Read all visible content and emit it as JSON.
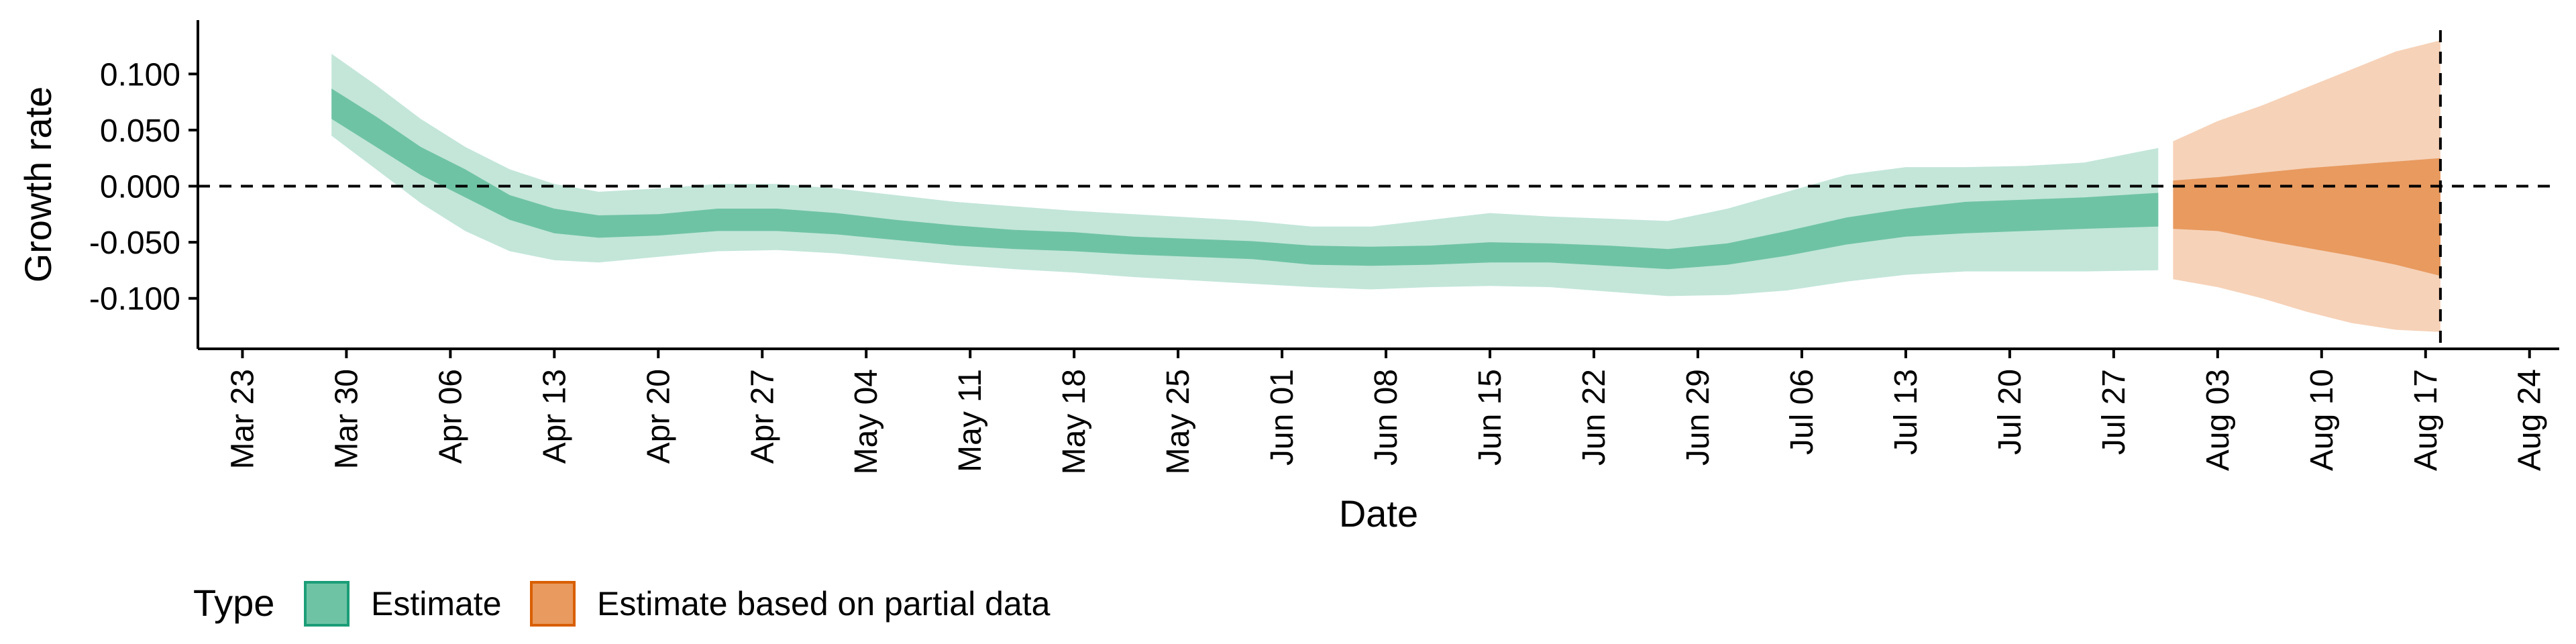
{
  "chart_data": {
    "type": "area",
    "xlabel": "Date",
    "ylabel": "Growth rate",
    "x_axis": {
      "type": "date",
      "range": [
        "2020-03-20",
        "2020-08-26"
      ],
      "tick_dates": [
        "2020-03-23",
        "2020-03-30",
        "2020-04-06",
        "2020-04-13",
        "2020-04-20",
        "2020-04-27",
        "2020-05-04",
        "2020-05-11",
        "2020-05-18",
        "2020-05-25",
        "2020-06-01",
        "2020-06-08",
        "2020-06-15",
        "2020-06-22",
        "2020-06-29",
        "2020-07-06",
        "2020-07-13",
        "2020-07-20",
        "2020-07-27",
        "2020-08-03",
        "2020-08-10",
        "2020-08-17",
        "2020-08-24"
      ],
      "tick_labels": [
        "Mar 23",
        "Mar 30",
        "Apr 06",
        "Apr 13",
        "Apr 20",
        "Apr 27",
        "May 04",
        "May 11",
        "May 18",
        "May 25",
        "Jun 01",
        "Jun 08",
        "Jun 15",
        "Jun 22",
        "Jun 29",
        "Jul 06",
        "Jul 13",
        "Jul 20",
        "Jul 27",
        "Aug 03",
        "Aug 10",
        "Aug 17",
        "Aug 24"
      ]
    },
    "y_axis": {
      "range": [
        -0.145,
        0.148
      ],
      "ticks": [
        -0.1,
        -0.05,
        0.0,
        0.05,
        0.1
      ],
      "tick_labels": [
        "-0.100",
        "-0.050",
        "0.000",
        "0.050",
        "0.100"
      ]
    },
    "reference_lines": {
      "horizontal_y": 0.0,
      "vertical_date": "2020-08-18",
      "style": "dashed"
    },
    "legend": {
      "title": "Type",
      "position": "bottom",
      "entries": [
        {
          "label": "Estimate",
          "fill": "#6fc3a5",
          "border": "#1b9e77"
        },
        {
          "label": "Estimate based on partial data",
          "fill": "#e89a5f",
          "border": "#d95f02"
        }
      ]
    },
    "colors": {
      "estimate_inner": "#6fc3a5",
      "estimate_outer": "#c3e6d9",
      "partial_inner": "#e89a5f",
      "partial_outer": "#f6d2b8",
      "axis": "#000000"
    },
    "series": [
      {
        "name": "Estimate",
        "x": [
          "2020-03-29",
          "2020-04-01",
          "2020-04-04",
          "2020-04-07",
          "2020-04-10",
          "2020-04-13",
          "2020-04-16",
          "2020-04-20",
          "2020-04-24",
          "2020-04-28",
          "2020-05-02",
          "2020-05-06",
          "2020-05-10",
          "2020-05-14",
          "2020-05-18",
          "2020-05-22",
          "2020-05-26",
          "2020-05-30",
          "2020-06-03",
          "2020-06-07",
          "2020-06-11",
          "2020-06-15",
          "2020-06-19",
          "2020-06-23",
          "2020-06-27",
          "2020-07-01",
          "2020-07-05",
          "2020-07-09",
          "2020-07-13",
          "2020-07-17",
          "2020-07-21",
          "2020-07-25",
          "2020-07-30"
        ],
        "inner_lower": [
          0.06,
          0.035,
          0.01,
          -0.01,
          -0.03,
          -0.042,
          -0.046,
          -0.044,
          -0.04,
          -0.04,
          -0.043,
          -0.048,
          -0.053,
          -0.056,
          -0.058,
          -0.061,
          -0.063,
          -0.065,
          -0.07,
          -0.071,
          -0.07,
          -0.068,
          -0.068,
          -0.071,
          -0.074,
          -0.07,
          -0.062,
          -0.052,
          -0.045,
          -0.042,
          -0.04,
          -0.038,
          -0.036
        ],
        "inner_upper": [
          0.087,
          0.062,
          0.035,
          0.015,
          -0.008,
          -0.02,
          -0.026,
          -0.025,
          -0.02,
          -0.02,
          -0.024,
          -0.03,
          -0.035,
          -0.039,
          -0.041,
          -0.045,
          -0.047,
          -0.049,
          -0.053,
          -0.054,
          -0.053,
          -0.05,
          -0.051,
          -0.053,
          -0.056,
          -0.051,
          -0.04,
          -0.028,
          -0.02,
          -0.014,
          -0.012,
          -0.01,
          -0.006
        ],
        "outer_lower": [
          0.045,
          0.015,
          -0.015,
          -0.04,
          -0.058,
          -0.066,
          -0.068,
          -0.063,
          -0.058,
          -0.057,
          -0.06,
          -0.065,
          -0.07,
          -0.074,
          -0.077,
          -0.081,
          -0.084,
          -0.087,
          -0.09,
          -0.092,
          -0.09,
          -0.089,
          -0.09,
          -0.094,
          -0.098,
          -0.097,
          -0.093,
          -0.085,
          -0.079,
          -0.076,
          -0.076,
          -0.076,
          -0.075
        ],
        "outer_upper": [
          0.118,
          0.09,
          0.06,
          0.035,
          0.015,
          0.002,
          -0.005,
          -0.002,
          0.002,
          0.002,
          -0.002,
          -0.008,
          -0.014,
          -0.018,
          -0.022,
          -0.025,
          -0.028,
          -0.031,
          -0.036,
          -0.036,
          -0.03,
          -0.024,
          -0.027,
          -0.029,
          -0.031,
          -0.02,
          -0.005,
          0.01,
          0.017,
          0.017,
          0.018,
          0.021,
          0.034
        ]
      },
      {
        "name": "Estimate based on partial data",
        "x": [
          "2020-07-31",
          "2020-08-03",
          "2020-08-06",
          "2020-08-09",
          "2020-08-12",
          "2020-08-15",
          "2020-08-18"
        ],
        "inner_lower": [
          -0.038,
          -0.04,
          -0.048,
          -0.055,
          -0.062,
          -0.07,
          -0.08
        ],
        "inner_upper": [
          0.005,
          0.008,
          0.012,
          0.016,
          0.019,
          0.022,
          0.025
        ],
        "outer_lower": [
          -0.083,
          -0.09,
          -0.1,
          -0.112,
          -0.122,
          -0.128,
          -0.13
        ],
        "outer_upper": [
          0.04,
          0.058,
          0.072,
          0.088,
          0.104,
          0.12,
          0.13
        ]
      }
    ]
  }
}
